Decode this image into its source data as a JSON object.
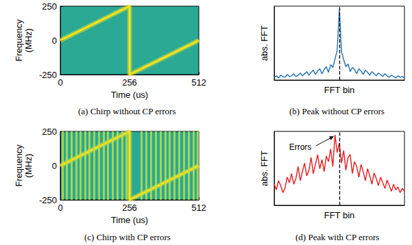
{
  "chart_data": [
    {
      "type": "spectrogram",
      "title": "(a) Chirp without CP errors",
      "x_label": "Time (us)",
      "y_label": "Frequency (MHz)",
      "x": [
        0,
        256,
        256,
        512
      ],
      "values": [
        0,
        250,
        -250,
        0
      ],
      "color": "#f7e31c",
      "xlim": [
        0,
        512
      ],
      "xticks": [
        0,
        256,
        512
      ],
      "ylim": [
        -250,
        250
      ],
      "yticks": [
        -250,
        0,
        250
      ]
    },
    {
      "type": "line",
      "title": "(b) Peak without CP errors",
      "x_label": "FFT bin",
      "y_label": "abs. FFT",
      "x": [
        0,
        1,
        2,
        3,
        4,
        5,
        6,
        7,
        8,
        9,
        10,
        11,
        12,
        13,
        14,
        15,
        16,
        17,
        18,
        19,
        20,
        21,
        22,
        23,
        24,
        25,
        26,
        27,
        28,
        29,
        30,
        31,
        32,
        33,
        34,
        35,
        36,
        37,
        38,
        39,
        40,
        41,
        42,
        43,
        44,
        45,
        46,
        47,
        48,
        49,
        50,
        51,
        52,
        53,
        54,
        55,
        56,
        57,
        58,
        59,
        60
      ],
      "values": [
        0.04,
        0.06,
        0.03,
        0.07,
        0.05,
        0.04,
        0.08,
        0.05,
        0.06,
        0.09,
        0.05,
        0.07,
        0.1,
        0.06,
        0.09,
        0.12,
        0.07,
        0.11,
        0.14,
        0.08,
        0.13,
        0.16,
        0.09,
        0.15,
        0.19,
        0.11,
        0.22,
        0.18,
        0.3,
        0.42,
        1.0,
        0.4,
        0.29,
        0.19,
        0.23,
        0.12,
        0.18,
        0.15,
        0.09,
        0.16,
        0.13,
        0.08,
        0.14,
        0.11,
        0.07,
        0.12,
        0.09,
        0.06,
        0.1,
        0.08,
        0.05,
        0.09,
        0.06,
        0.04,
        0.07,
        0.05,
        0.03,
        0.06,
        0.04,
        0.05,
        0.03
      ],
      "color": "#1f6fb4",
      "xlim": [
        0,
        60
      ],
      "xticks": [],
      "ylim": [
        0,
        1.05
      ],
      "yticks": [],
      "tick_labels": false,
      "reference_x": 30
    },
    {
      "type": "spectrogram",
      "title": "(c) Chirp with CP errors",
      "x_label": "Time (us)",
      "y_label": "Frequency (MHz)",
      "x": [
        0,
        256,
        256,
        512
      ],
      "values": [
        0,
        250,
        -250,
        0
      ],
      "color": "#f7e31c",
      "xlim": [
        0,
        512
      ],
      "xticks": [
        0,
        256,
        512
      ],
      "ylim": [
        -250,
        250
      ],
      "yticks": [
        -250,
        0,
        250
      ],
      "error_times": [
        8,
        24,
        40,
        58,
        74,
        92,
        108,
        126,
        142,
        160,
        176,
        194,
        210,
        228,
        244,
        300,
        318,
        336,
        352,
        370,
        388,
        404,
        422,
        440,
        456,
        474,
        492,
        508
      ]
    },
    {
      "type": "line",
      "title": "(d) Peak with CP errors",
      "x_label": "FFT bin",
      "y_label": "abs. FFT",
      "x": [
        0,
        1,
        2,
        3,
        4,
        5,
        6,
        7,
        8,
        9,
        10,
        11,
        12,
        13,
        14,
        15,
        16,
        17,
        18,
        19,
        20,
        21,
        22,
        23,
        24,
        25,
        26,
        27,
        28,
        29,
        30,
        31,
        32,
        33,
        34,
        35,
        36,
        37,
        38,
        39,
        40,
        41,
        42,
        43,
        44,
        45,
        46,
        47,
        48,
        49,
        50,
        51,
        52,
        53,
        54,
        55,
        56,
        57,
        58,
        59,
        60
      ],
      "values": [
        0.3,
        0.22,
        0.35,
        0.28,
        0.18,
        0.25,
        0.4,
        0.32,
        0.45,
        0.3,
        0.38,
        0.55,
        0.35,
        0.48,
        0.6,
        0.42,
        0.5,
        0.68,
        0.45,
        0.58,
        0.72,
        0.52,
        0.65,
        0.48,
        0.7,
        0.62,
        0.8,
        0.55,
        1.0,
        0.75,
        0.88,
        0.6,
        0.78,
        0.5,
        0.68,
        0.72,
        0.45,
        0.62,
        0.55,
        0.4,
        0.58,
        0.48,
        0.35,
        0.52,
        0.42,
        0.3,
        0.46,
        0.38,
        0.28,
        0.4,
        0.32,
        0.24,
        0.36,
        0.28,
        0.2,
        0.3,
        0.22,
        0.26,
        0.18,
        0.24,
        0.2
      ],
      "color": "#e8191c",
      "xlim": [
        0,
        60
      ],
      "xticks": [],
      "ylim": [
        0,
        1.05
      ],
      "yticks": [],
      "tick_labels": false,
      "reference_x": 30,
      "annotations": [
        {
          "text": "Errors",
          "x": 28,
          "y": 1.0
        }
      ]
    }
  ]
}
